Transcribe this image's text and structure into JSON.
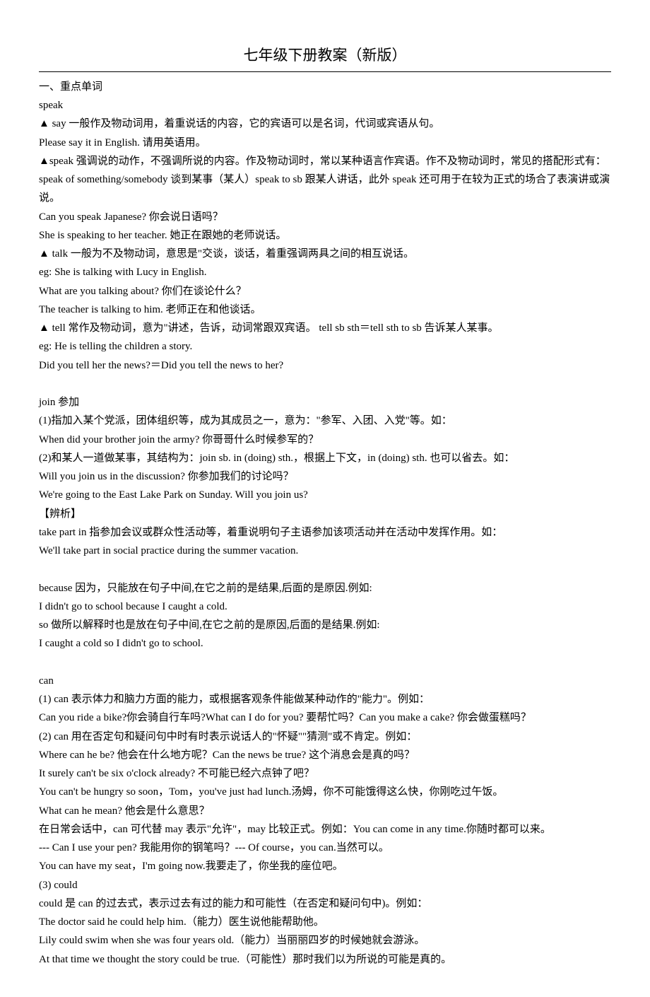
{
  "title": "七年级下册教案（新版）",
  "lines": [
    "一、重点单词",
    "speak",
    "▲ say 一般作及物动词用，着重说话的内容，它的宾语可以是名词，代词或宾语从句。",
    "Please say it in English. 请用英语用。",
    "▲speak 强调说的动作，不强调所说的内容。作及物动词时，常以某种语言作宾语。作不及物动词时，常见的搭配形式有：",
    "speak of something/somebody 谈到某事（某人）speak to sb 跟某人讲话，此外 speak 还可用于在较为正式的场合了表演讲或演说。",
    "Can you speak Japanese? 你会说日语吗？",
    "She is speaking to her teacher. 她正在跟她的老师说话。",
    "▲ talk 一般为不及物动词，意思是\"交谈，谈话，着重强调两具之间的相互说话。",
    "eg: She is talking with Lucy in English.",
    "What are you talking about? 你们在谈论什么？",
    "The teacher is talking to him. 老师正在和他谈话。",
    "▲ tell 常作及物动词，意为\"讲述，告诉，动词常跟双宾语。 tell sb sth＝tell sth to sb 告诉某人某事。",
    "eg: He is telling the children a story.",
    "Did you tell her the news?＝Did you tell the news to her?",
    "",
    "join 参加",
    "(1)指加入某个党派，团体组织等，成为其成员之一，意为：\"参军、入团、入党\"等。如：",
    "When did your brother join the army? 你哥哥什么时候参军的？",
    "(2)和某人一道做某事，其结构为：join sb. in (doing) sth.，根据上下文，in (doing) sth. 也可以省去。如：",
    "Will you join us in the discussion? 你参加我们的讨论吗？",
    "We're going to the East Lake Park on Sunday. Will you join us?",
    "【辨析】",
    "take part in 指参加会议或群众性活动等，着重说明句子主语参加该项活动并在活动中发挥作用。如：",
    "We'll take part in social practice during the summer vacation.",
    "",
    "because 因为，只能放在句子中间,在它之前的是结果,后面的是原因.例如:",
    "I didn't go to school because I caught a cold.",
    "so 做所以解释时也是放在句子中间,在它之前的是原因,后面的是结果.例如:",
    "I caught a cold so I didn't go to school.",
    "",
    "can",
    "(1) can 表示体力和脑力方面的能力，或根据客观条件能做某种动作的\"能力\"。例如：",
    "Can you ride a bike?你会骑自行车吗?What can I do for you? 要帮忙吗？Can you make a cake? 你会做蛋糕吗？",
    "(2) can 用在否定句和疑问句中时有时表示说话人的\"怀疑\"\"猜测\"或不肯定。例如：",
    "Where can he be? 他会在什么地方呢？Can the news be true? 这个消息会是真的吗？",
    "It surely can't be six o'clock already? 不可能已经六点钟了吧？",
    "You can't be hungry so soon，Tom，you've just had lunch.汤姆，你不可能饿得这么快，你刚吃过午饭。",
    "What can he mean? 他会是什么意思？",
    "在日常会话中，can 可代替 may 表示\"允许\"，may 比较正式。例如：You can come in any time.你随时都可以来。",
    "--- Can I use your pen? 我能用你的钢笔吗？--- Of course，you can.当然可以。",
    "You can have my seat，I'm going now.我要走了，你坐我的座位吧。",
    "(3) could",
    "could 是 can 的过去式，表示过去有过的能力和可能性（在否定和疑问句中)。例如：",
    "The doctor said he could help him.（能力）医生说他能帮助他。",
    "Lily could swim when she was four years old.（能力）当丽丽四岁的时候她就会游泳。",
    "At that time we thought the story could be true.（可能性）那时我们以为所说的可能是真的。"
  ]
}
